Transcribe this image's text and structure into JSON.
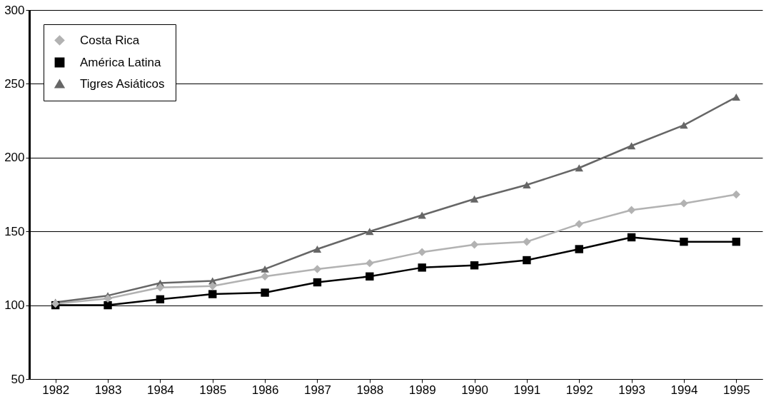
{
  "chart_data": {
    "type": "line",
    "categories": [
      "1982",
      "1983",
      "1984",
      "1985",
      "1986",
      "1987",
      "1988",
      "1989",
      "1990",
      "1991",
      "1992",
      "1993",
      "1994",
      "1995"
    ],
    "series": [
      {
        "name": "Costa Rica",
        "color": "#b2b2b2",
        "marker": "diamond",
        "values": [
          101,
          104.5,
          112,
          113,
          119.5,
          124.5,
          128.5,
          136,
          141,
          143,
          155,
          164.5,
          169,
          175
        ]
      },
      {
        "name": "América Latina",
        "color": "#000000",
        "marker": "square",
        "values": [
          100,
          100,
          104,
          107.5,
          108.5,
          115.5,
          119.5,
          125.5,
          127,
          130.5,
          138,
          146,
          143,
          143
        ]
      },
      {
        "name": "Tigres Asiáticos",
        "color": "#666666",
        "marker": "triangle",
        "values": [
          102,
          106.5,
          115,
          116.5,
          124.5,
          138,
          150,
          161,
          172,
          181.5,
          193,
          208,
          222,
          241
        ]
      }
    ],
    "ylim": [
      50,
      300
    ],
    "yticks": [
      50,
      100,
      150,
      200,
      250,
      300
    ],
    "grid": "y",
    "legend": "top left",
    "line_style": "solid"
  }
}
